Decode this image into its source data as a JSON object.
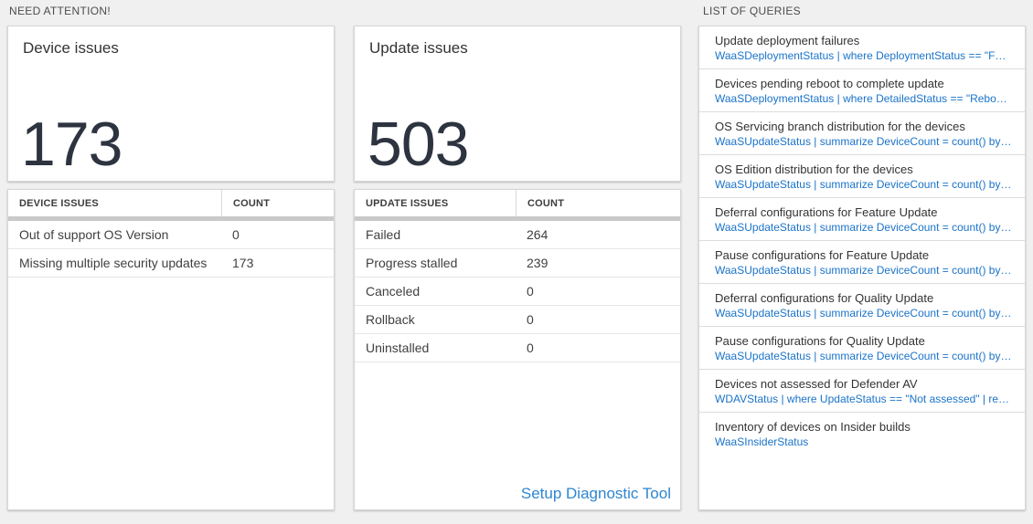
{
  "sections": {
    "need_attention_label": "NEED ATTENTION!",
    "list_of_queries_label": "LIST OF QUERIES"
  },
  "tiles": {
    "device": {
      "title": "Device issues",
      "count": "173",
      "table": {
        "header_issue": "DEVICE ISSUES",
        "header_count": "COUNT",
        "rows": [
          {
            "label": "Out of support OS Version",
            "count": "0"
          },
          {
            "label": "Missing multiple security updates",
            "count": "173"
          }
        ]
      }
    },
    "update": {
      "title": "Update issues",
      "count": "503",
      "table": {
        "header_issue": "UPDATE ISSUES",
        "header_count": "COUNT",
        "rows": [
          {
            "label": "Failed",
            "count": "264"
          },
          {
            "label": "Progress stalled",
            "count": "239"
          },
          {
            "label": "Canceled",
            "count": "0"
          },
          {
            "label": "Rollback",
            "count": "0"
          },
          {
            "label": "Uninstalled",
            "count": "0"
          }
        ]
      },
      "setup_link_label": "Setup Diagnostic Tool"
    }
  },
  "queries": {
    "items": [
      {
        "title": "Update deployment failures",
        "query": "WaaSDeploymentStatus | where DeploymentStatus == \"Failed\" |..."
      },
      {
        "title": "Devices pending reboot to complete update",
        "query": "WaaSDeploymentStatus | where DetailedStatus == \"Reboot pend..."
      },
      {
        "title": "OS Servicing branch distribution for the devices",
        "query": "WaaSUpdateStatus | summarize DeviceCount = count() by OSSer..."
      },
      {
        "title": "OS Edition distribution for the devices",
        "query": "WaaSUpdateStatus | summarize DeviceCount = count() by OSEdit..."
      },
      {
        "title": "Deferral configurations for Feature Update",
        "query": "WaaSUpdateStatus | summarize DeviceCount = count() by Featur..."
      },
      {
        "title": "Pause configurations for Feature Update",
        "query": "WaaSUpdateStatus | summarize DeviceCount = count() by Featur..."
      },
      {
        "title": "Deferral configurations for Quality Update",
        "query": "WaaSUpdateStatus | summarize DeviceCount = count() by Qualit..."
      },
      {
        "title": "Pause configurations for Quality Update",
        "query": "WaaSUpdateStatus | summarize DeviceCount = count() by Qualit..."
      },
      {
        "title": "Devices not assessed for Defender AV",
        "query": "WDAVStatus | where UpdateStatus == \"Not assessed\" | render ta..."
      },
      {
        "title": "Inventory of devices on Insider builds",
        "query": "WaaSInsiderStatus"
      }
    ]
  },
  "colors": {
    "page_bg": "#f0f0f0",
    "card_bg": "#ffffff",
    "card_border": "#d6d6d6",
    "big_number": "#2d3440",
    "header_divider_bar": "#c9c9c9",
    "row_divider": "#e6e6e6",
    "query_link_blue": "#1a73c8",
    "setup_link_blue": "#2e86d1"
  }
}
